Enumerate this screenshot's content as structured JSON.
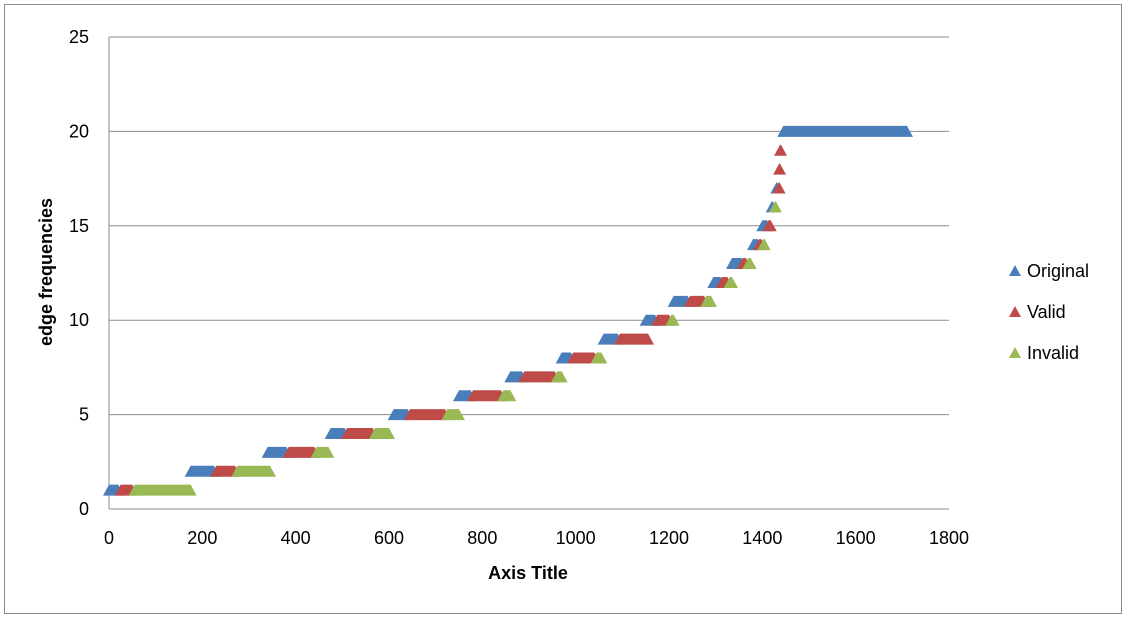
{
  "chart_data": {
    "type": "scatter",
    "xlabel": "Axis Title",
    "ylabel": "edge frequencies",
    "xlim": [
      0,
      1800
    ],
    "ylim": [
      0,
      25
    ],
    "xticks": [
      0,
      200,
      400,
      600,
      800,
      1000,
      1200,
      1400,
      1600,
      1800
    ],
    "yticks": [
      0,
      5,
      10,
      15,
      20,
      25
    ],
    "grid": "horizontal",
    "legend_position": "right",
    "series": [
      {
        "name": "Original",
        "color": "#4a7ebb",
        "marker": "triangle",
        "segments": [
          {
            "y": 1,
            "x": [
              0,
              20
            ]
          },
          {
            "y": 2,
            "x": [
              175,
              225
            ]
          },
          {
            "y": 3,
            "x": [
              340,
              380
            ]
          },
          {
            "y": 4,
            "x": [
              475,
              505
            ]
          },
          {
            "y": 5,
            "x": [
              610,
              640
            ]
          },
          {
            "y": 6,
            "x": [
              750,
              775
            ]
          },
          {
            "y": 7,
            "x": [
              860,
              885
            ]
          },
          {
            "y": 8,
            "x": [
              970,
              990
            ]
          },
          {
            "y": 9,
            "x": [
              1060,
              1090
            ]
          },
          {
            "y": 10,
            "x": [
              1150,
              1170
            ]
          },
          {
            "y": 11,
            "x": [
              1210,
              1240
            ]
          },
          {
            "y": 12,
            "x": [
              1295,
              1310
            ]
          },
          {
            "y": 13,
            "x": [
              1335,
              1355
            ]
          },
          {
            "y": 14,
            "x": [
              1380,
              1390
            ]
          },
          {
            "y": 15,
            "x": [
              1400,
              1410
            ]
          },
          {
            "y": 16,
            "x": [
              1420,
              1422
            ]
          },
          {
            "y": 17,
            "x": [
              1430,
              1432
            ]
          },
          {
            "y": 20,
            "x": [
              1445,
              1710
            ]
          }
        ]
      },
      {
        "name": "Valid",
        "color": "#be4b48",
        "marker": "triangle",
        "segments": [
          {
            "y": 1,
            "x": [
              25,
              50
            ]
          },
          {
            "y": 2,
            "x": [
              230,
              270
            ]
          },
          {
            "y": 3,
            "x": [
              385,
              440
            ]
          },
          {
            "y": 4,
            "x": [
              510,
              565
            ]
          },
          {
            "y": 5,
            "x": [
              645,
              720
            ]
          },
          {
            "y": 6,
            "x": [
              780,
              840
            ]
          },
          {
            "y": 7,
            "x": [
              890,
              955
            ]
          },
          {
            "y": 8,
            "x": [
              995,
              1040
            ]
          },
          {
            "y": 9,
            "x": [
              1095,
              1155
            ]
          },
          {
            "y": 10,
            "x": [
              1175,
              1200
            ]
          },
          {
            "y": 11,
            "x": [
              1245,
              1275
            ]
          },
          {
            "y": 12,
            "x": [
              1313,
              1325
            ]
          },
          {
            "y": 13,
            "x": [
              1358,
              1365
            ]
          },
          {
            "y": 14,
            "x": [
              1393,
              1398
            ]
          },
          {
            "y": 15,
            "x": [
              1413,
              1418
            ]
          },
          {
            "y": 17,
            "x": [
              1435,
              1437
            ]
          },
          {
            "y": 18,
            "x": [
              1436,
              1438
            ]
          },
          {
            "y": 19,
            "x": [
              1438,
              1440
            ]
          }
        ]
      },
      {
        "name": "Invalid",
        "color": "#98b954",
        "marker": "triangle",
        "segments": [
          {
            "y": 1,
            "x": [
              55,
              175
            ]
          },
          {
            "y": 2,
            "x": [
              275,
              345
            ]
          },
          {
            "y": 3,
            "x": [
              445,
              470
            ]
          },
          {
            "y": 4,
            "x": [
              570,
              600
            ]
          },
          {
            "y": 5,
            "x": [
              725,
              750
            ]
          },
          {
            "y": 6,
            "x": [
              845,
              860
            ]
          },
          {
            "y": 7,
            "x": [
              960,
              970
            ]
          },
          {
            "y": 8,
            "x": [
              1045,
              1055
            ]
          },
          {
            "y": 10,
            "x": [
              1205,
              1210
            ]
          },
          {
            "y": 11,
            "x": [
              1280,
              1290
            ]
          },
          {
            "y": 12,
            "x": [
              1330,
              1335
            ]
          },
          {
            "y": 13,
            "x": [
              1370,
              1375
            ]
          },
          {
            "y": 14,
            "x": [
              1402,
              1405
            ]
          },
          {
            "y": 16,
            "x": [
              1427,
              1429
            ]
          }
        ]
      }
    ]
  }
}
